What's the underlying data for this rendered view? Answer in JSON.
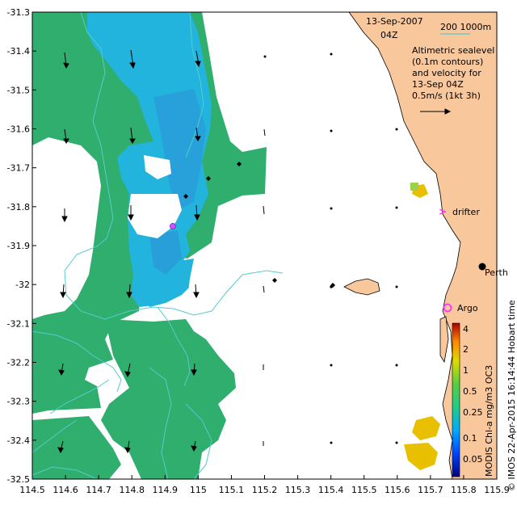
{
  "map": {
    "header": {
      "date": "13-Sep-2007",
      "time": "04Z",
      "isobath_label": "200   1000m",
      "legend_lines": [
        "Altimetric sealevel",
        "(0.1m contours)",
        "and velocity for",
        "13-Sep 04Z"
      ],
      "scale_label": "0.5m/s (1kt 3h)"
    },
    "markers": {
      "drifter_label": "drifter",
      "argo_label": "Argo",
      "city_label": "Perth"
    },
    "side_caption": "© IMOS 22-Apr-2015 16:14:44 Hobart time",
    "colorbar": {
      "title": "MODIS Chl-a mg/m3 OC3",
      "tick_labels": [
        "4",
        "2",
        "1",
        "0.5",
        "0.25",
        "0.1",
        "0.05"
      ]
    },
    "x_ticks": [
      "114.5",
      "114.6",
      "114.7",
      "114.8",
      "114.9",
      "115",
      "115.1",
      "115.2",
      "115.3",
      "115.4",
      "115.5",
      "115.6",
      "115.7",
      "115.8",
      "115.9"
    ],
    "y_ticks": [
      "-31.3",
      "-31.4",
      "-31.5",
      "-31.6",
      "-31.7",
      "-31.8",
      "-31.9",
      "-32",
      "-32.1",
      "-32.2",
      "-32.3",
      "-32.4",
      "-32.5"
    ],
    "colors": {
      "land": "#f9c79c",
      "chl_green": "#2fae6e",
      "chl_cyan": "#22b4dc",
      "chl_blue": "#2d8fd8",
      "chl_yellow": "#e8c000",
      "contour": "#55cccc",
      "isobath": "#55cccc",
      "drifter_marker": "#ff33ff",
      "argo_marker": "#ff33ff"
    }
  }
}
